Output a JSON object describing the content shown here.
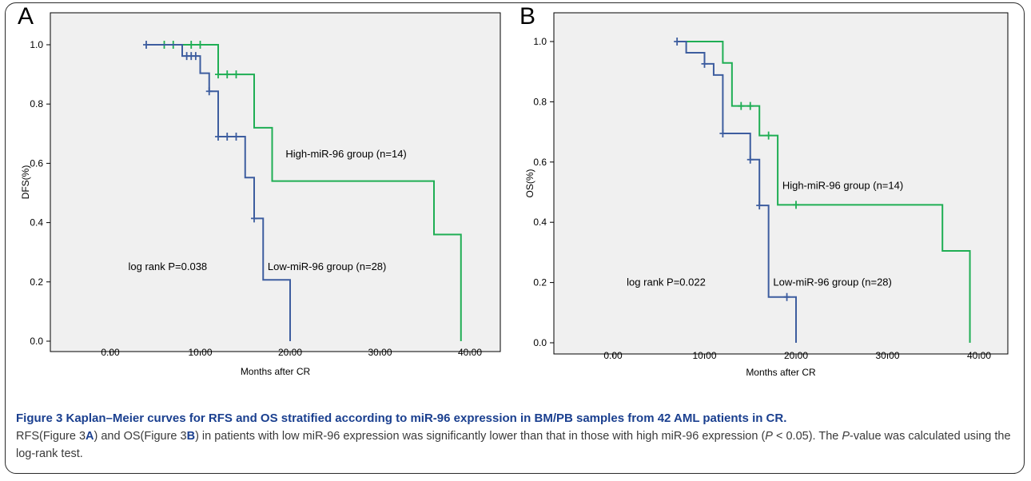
{
  "caption": {
    "title": "Figure 3 Kaplan–Meier curves for RFS and OS stratified according to miR-96 expression in BM/PB samples from 42 AML patients in CR.",
    "body_parts": [
      {
        "text": "RFS(Figure 3",
        "style": "normal"
      },
      {
        "text": "A",
        "style": "bold"
      },
      {
        "text": ") and OS(Figure 3",
        "style": "normal"
      },
      {
        "text": "B",
        "style": "bold"
      },
      {
        "text": ") in patients with low miR-96 expression was significantly lower than that in those with high miR-96 expression (",
        "style": "normal"
      },
      {
        "text": "P",
        "style": "italic"
      },
      {
        "text": " < 0.05). The ",
        "style": "normal"
      },
      {
        "text": "P",
        "style": "italic"
      },
      {
        "text": "-value was calculated using the log-rank test.",
        "style": "normal"
      }
    ]
  },
  "chart_data": [
    {
      "panel": "A",
      "type": "line",
      "step": "post",
      "xlabel": "Months after CR",
      "ylabel": "DFS(%)",
      "xlim": [
        0,
        40
      ],
      "ylim": [
        0,
        1
      ],
      "xticks": [
        0,
        10,
        20,
        30,
        40
      ],
      "xtick_labels": [
        "0.00",
        "10.00",
        "20.00",
        "30.00",
        "40.00"
      ],
      "yticks": [
        0,
        0.2,
        0.4,
        0.6,
        0.8,
        1.0
      ],
      "ytick_labels": [
        "0.0",
        "0.2",
        "0.4",
        "0.6",
        "0.8",
        "1.0"
      ],
      "grid": false,
      "annotations": [
        {
          "text": "log rank P=0.038",
          "x": 2,
          "y": 0.24
        },
        {
          "text": "High-miR-96 group (n=14)",
          "x": 19.5,
          "y": 0.62
        },
        {
          "text": "Low-miR-96 group (n=28)",
          "x": 17.5,
          "y": 0.24
        }
      ],
      "series": [
        {
          "name": "High-miR-96 group (n=14)",
          "color": "#1fae54",
          "x": [
            4,
            12,
            16,
            18,
            36,
            39
          ],
          "y": [
            1.0,
            0.9,
            0.72,
            0.54,
            0.36,
            0.0
          ],
          "censored": [
            [
              6,
              1.0
            ],
            [
              7,
              1.0
            ],
            [
              9,
              1.0
            ],
            [
              10,
              1.0
            ],
            [
              12,
              0.9
            ],
            [
              13,
              0.9
            ],
            [
              14,
              0.9
            ]
          ]
        },
        {
          "name": "Low-miR-96 group (n=28)",
          "color": "#3d5d9f",
          "x": [
            4,
            8,
            10,
            11,
            12,
            15,
            16,
            17,
            20
          ],
          "y": [
            1.0,
            0.962,
            0.904,
            0.843,
            0.69,
            0.552,
            0.414,
            0.207,
            0.0
          ],
          "censored": [
            [
              4,
              1.0
            ],
            [
              8.5,
              0.962
            ],
            [
              9,
              0.962
            ],
            [
              9.5,
              0.962
            ],
            [
              11,
              0.843
            ],
            [
              12,
              0.69
            ],
            [
              13,
              0.69
            ],
            [
              14,
              0.69
            ],
            [
              16,
              0.414
            ]
          ]
        }
      ]
    },
    {
      "panel": "B",
      "type": "line",
      "step": "post",
      "xlabel": "Months after CR",
      "ylabel": "OS(%)",
      "xlim": [
        0,
        40
      ],
      "ylim": [
        0,
        1
      ],
      "xticks": [
        0,
        10,
        20,
        30,
        40
      ],
      "xtick_labels": [
        "0.00",
        "10.00",
        "20.00",
        "30.00",
        "40.00"
      ],
      "yticks": [
        0,
        0.2,
        0.4,
        0.6,
        0.8,
        1.0
      ],
      "ytick_labels": [
        "0.0",
        "0.2",
        "0.4",
        "0.6",
        "0.8",
        "1.0"
      ],
      "grid": false,
      "annotations": [
        {
          "text": "log rank P=0.022",
          "x": 1.5,
          "y": 0.19
        },
        {
          "text": "High-miR-96 group (n=14)",
          "x": 18.5,
          "y": 0.51
        },
        {
          "text": "Low-miR-96 group (n=28)",
          "x": 17.5,
          "y": 0.19
        }
      ],
      "series": [
        {
          "name": "High-miR-96 group (n=14)",
          "color": "#1fae54",
          "x": [
            7,
            12,
            13,
            16,
            18,
            36,
            39
          ],
          "y": [
            1.0,
            0.929,
            0.786,
            0.688,
            0.458,
            0.305,
            0.0
          ],
          "censored": [
            [
              14,
              0.786
            ],
            [
              15,
              0.786
            ],
            [
              17,
              0.688
            ],
            [
              20,
              0.458
            ]
          ]
        },
        {
          "name": "Low-miR-96 group (n=28)",
          "color": "#3d5d9f",
          "x": [
            7,
            8,
            10,
            11,
            12,
            15,
            16,
            17,
            20
          ],
          "y": [
            1.0,
            0.963,
            0.926,
            0.889,
            0.695,
            0.608,
            0.456,
            0.152,
            0.0
          ],
          "censored": [
            [
              7,
              1.0
            ],
            [
              10,
              0.926
            ],
            [
              12,
              0.695
            ],
            [
              15,
              0.608
            ],
            [
              16,
              0.456
            ],
            [
              19,
              0.152
            ]
          ]
        }
      ]
    }
  ]
}
